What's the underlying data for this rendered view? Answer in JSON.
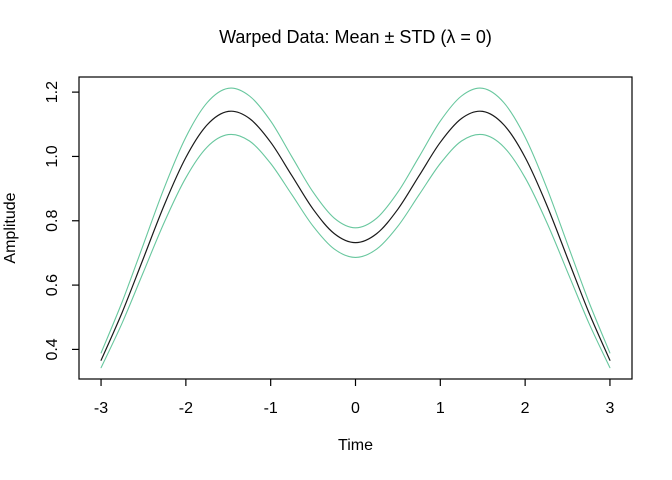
{
  "figure": {
    "title": "Warped Data: Mean ± STD (λ = 0)",
    "xlabel": "Time",
    "ylabel": "Amplitude"
  },
  "colors": {
    "mean_line": "#1a1a1a",
    "std_line": "#68c79e",
    "axis": "#000000",
    "background": "#ffffff"
  },
  "chart_data": {
    "type": "line",
    "title": "Warped Data: Mean ± STD (λ = 0)",
    "xlabel": "Time",
    "ylabel": "Amplitude",
    "grid": false,
    "legend": "none",
    "xlim": [
      -3.26,
      3.26
    ],
    "ylim": [
      0.308,
      1.247
    ],
    "x_ticks": [
      -3,
      -2,
      -1,
      0,
      1,
      2,
      3
    ],
    "x_tick_labels": [
      "-3",
      "-2",
      "-1",
      "0",
      "1",
      "2",
      "3"
    ],
    "y_ticks": [
      0.4,
      0.6,
      0.8,
      1.0,
      1.2
    ],
    "y_tick_labels": [
      "0.4",
      "0.6",
      "0.8",
      "1.0",
      "1.2"
    ],
    "x": [
      -3,
      -2.75,
      -2.5,
      -2.25,
      -2,
      -1.75,
      -1.5,
      -1.25,
      -1,
      -0.75,
      -0.5,
      -0.25,
      0,
      0.25,
      0.5,
      0.75,
      1,
      1.25,
      1.5,
      1.75,
      2,
      2.25,
      2.5,
      2.75,
      3
    ],
    "series": [
      {
        "name": "mean-plus-std",
        "color": "#68c79e",
        "width": 1.1,
        "values": [
          0.389,
          0.549,
          0.727,
          0.906,
          1.06,
          1.167,
          1.212,
          1.188,
          1.11,
          0.999,
          0.889,
          0.808,
          0.778,
          0.808,
          0.889,
          0.999,
          1.11,
          1.188,
          1.212,
          1.167,
          1.06,
          0.906,
          0.727,
          0.549,
          0.389
        ]
      },
      {
        "name": "mean",
        "color": "#1a1a1a",
        "width": 1.2,
        "values": [
          0.366,
          0.516,
          0.684,
          0.852,
          0.997,
          1.098,
          1.14,
          1.118,
          1.044,
          0.94,
          0.836,
          0.76,
          0.732,
          0.76,
          0.836,
          0.94,
          1.044,
          1.118,
          1.14,
          1.098,
          0.997,
          0.852,
          0.684,
          0.516,
          0.366
        ]
      },
      {
        "name": "mean-minus-std",
        "color": "#68c79e",
        "width": 1.1,
        "values": [
          0.343,
          0.483,
          0.641,
          0.798,
          0.934,
          1.029,
          1.068,
          1.048,
          0.978,
          0.881,
          0.783,
          0.712,
          0.686,
          0.712,
          0.783,
          0.881,
          0.978,
          1.048,
          1.068,
          1.029,
          0.934,
          0.798,
          0.641,
          0.483,
          0.343
        ]
      }
    ]
  }
}
